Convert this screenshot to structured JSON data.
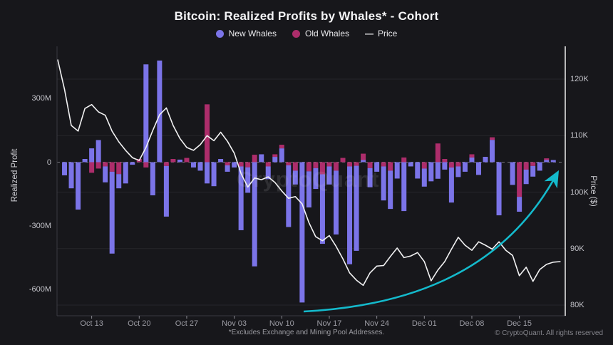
{
  "title": "Bitcoin: Realized Profits by Whales* - Cohort",
  "legend": {
    "new_whales_label": "New Whales",
    "old_whales_label": "Old Whales",
    "price_label": "Price",
    "price_line_glyph": "—"
  },
  "watermark": "CryptoQuant",
  "footnote": "*Excludes Exchange and Mining Pool Addresses.",
  "copyright": "© CryptoQuant. All rights reserved",
  "colors": {
    "background": "#17171b",
    "new_whales": "#7b74e8",
    "old_whales": "#ad2d6b",
    "price_line": "#f2f2f3",
    "arrow": "#14bacc",
    "grid": "#26262b",
    "zero_dash": "#75757d",
    "right_spine": "#eeeeee",
    "left_spine": "#3a3a40"
  },
  "chart_data": {
    "type": "bar",
    "subtype": "stacked daily bars (Realized Profit, $M) + price line (right axis, $K)",
    "title": "Bitcoin: Realized Profits by Whales* - Cohort",
    "xlabel": "",
    "ylabel": "Realized Profit",
    "ylabel_right": "Price ($)",
    "grid": "horizontal, aligned to right (price) axis ticks",
    "legend_position": "top-center",
    "left_axis": {
      "title": "Realized Profit",
      "ticks": [
        "300M",
        "0",
        "-300M",
        "-600M"
      ],
      "tick_values": [
        300,
        0,
        -300,
        -600
      ],
      "range": [
        -700,
        545
      ]
    },
    "right_axis": {
      "title": "Price ($)",
      "ticks": [
        "120K",
        "110K",
        "100K",
        "90K",
        "80K"
      ],
      "tick_values": [
        120,
        110,
        100,
        90,
        80
      ],
      "range": [
        80,
        124
      ]
    },
    "x_ticks": [
      "Oct 13",
      "Oct 20",
      "Oct 27",
      "Nov 03",
      "Nov 10",
      "Nov 17",
      "Nov 24",
      "Dec 01",
      "Dec 08",
      "Dec 15"
    ],
    "dates": [
      "Oct 08",
      "Oct 09",
      "Oct 10",
      "Oct 11",
      "Oct 12",
      "Oct 13",
      "Oct 14",
      "Oct 15",
      "Oct 16",
      "Oct 17",
      "Oct 18",
      "Oct 19",
      "Oct 20",
      "Oct 21",
      "Oct 22",
      "Oct 23",
      "Oct 24",
      "Oct 25",
      "Oct 26",
      "Oct 27",
      "Oct 28",
      "Oct 29",
      "Oct 30",
      "Oct 31",
      "Nov 01",
      "Nov 02",
      "Nov 03",
      "Nov 04",
      "Nov 05",
      "Nov 06",
      "Nov 07",
      "Nov 08",
      "Nov 09",
      "Nov 10",
      "Nov 11",
      "Nov 12",
      "Nov 13",
      "Nov 14",
      "Nov 15",
      "Nov 16",
      "Nov 17",
      "Nov 18",
      "Nov 19",
      "Nov 20",
      "Nov 21",
      "Nov 22",
      "Nov 23",
      "Nov 24",
      "Nov 25",
      "Nov 26",
      "Nov 27",
      "Nov 28",
      "Nov 29",
      "Nov 30",
      "Dec 01",
      "Dec 02",
      "Dec 03",
      "Dec 04",
      "Dec 05",
      "Dec 06",
      "Dec 07",
      "Dec 08",
      "Dec 09",
      "Dec 10",
      "Dec 11",
      "Dec 12",
      "Dec 13",
      "Dec 14",
      "Dec 15",
      "Dec 16",
      "Dec 17",
      "Dec 18",
      "Dec 19",
      "Dec 20",
      "Dec 21"
    ],
    "series": [
      {
        "name": "New Whales",
        "type": "bar",
        "axis": "left",
        "unit": "M$",
        "color": "#7b74e8",
        "values": [
          0,
          -62,
          -123,
          -223,
          15,
          65,
          104,
          -75,
          -385,
          -67,
          -100,
          -12,
          0,
          460,
          -156,
          478,
          -238,
          0,
          12,
          0,
          -25,
          -40,
          -100,
          -113,
          15,
          -30,
          -25,
          -300,
          -120,
          -490,
          37,
          -60,
          25,
          65,
          -290,
          -65,
          -660,
          -170,
          -98,
          -327,
          -85,
          -300,
          0,
          -460,
          -400,
          10,
          -90,
          -45,
          -160,
          -180,
          -77,
          -230,
          -20,
          -77,
          -85,
          -90,
          -78,
          -35,
          -165,
          -50,
          -45,
          22,
          -60,
          25,
          105,
          -250,
          0,
          -107,
          -70,
          -68,
          -50,
          -40,
          10,
          10,
          0
        ]
      },
      {
        "name": "Old Whales",
        "type": "bar",
        "axis": "left",
        "unit": "M$",
        "color": "#ad2d6b",
        "values": [
          0,
          0,
          0,
          0,
          0,
          -50,
          -30,
          -20,
          -45,
          -56,
          0,
          0,
          15,
          -25,
          0,
          0,
          -18,
          15,
          0,
          20,
          0,
          0,
          272,
          0,
          0,
          -15,
          0,
          -20,
          -24,
          35,
          0,
          -20,
          12,
          17,
          -15,
          -40,
          0,
          -43,
          -28,
          -57,
          -20,
          -40,
          20,
          -20,
          -17,
          30,
          -28,
          0,
          -20,
          -40,
          0,
          22,
          0,
          0,
          -30,
          0,
          88,
          15,
          -25,
          -20,
          0,
          15,
          0,
          0,
          12,
          0,
          0,
          0,
          -163,
          -35,
          -18,
          0,
          8,
          0,
          0
        ]
      },
      {
        "name": "Price",
        "type": "line",
        "axis": "right",
        "unit": "K$",
        "color": "#f2f2f3",
        "values": [
          123.4,
          118.2,
          111.8,
          110.8,
          114.8,
          115.5,
          114.2,
          113.6,
          110.8,
          108.9,
          107.4,
          106.1,
          105.6,
          107.9,
          110.9,
          113.7,
          114.9,
          111.8,
          109.5,
          107.9,
          107.4,
          108.4,
          110.0,
          109.1,
          110.6,
          109.0,
          106.9,
          103.3,
          100.9,
          102.5,
          102.2,
          102.7,
          101.7,
          100.2,
          98.9,
          99.2,
          97.9,
          94.6,
          92.1,
          91.4,
          92.3,
          90.4,
          88.2,
          85.7,
          84.4,
          83.5,
          85.7,
          86.9,
          87.0,
          88.6,
          90.1,
          88.4,
          88.7,
          89.3,
          87.7,
          84.3,
          86.2,
          87.7,
          89.9,
          92.0,
          90.6,
          89.7,
          91.2,
          90.6,
          89.9,
          91.2,
          89.7,
          88.8,
          85.2,
          86.7,
          84.2,
          86.3,
          87.2,
          87.6,
          87.7
        ]
      }
    ],
    "annotation_arrow": {
      "description": "cyan curved arrow sweeping up-right across the lower chart",
      "color": "#14bacc",
      "from_date": "Nov 14",
      "to_date": "Dec 20"
    }
  }
}
